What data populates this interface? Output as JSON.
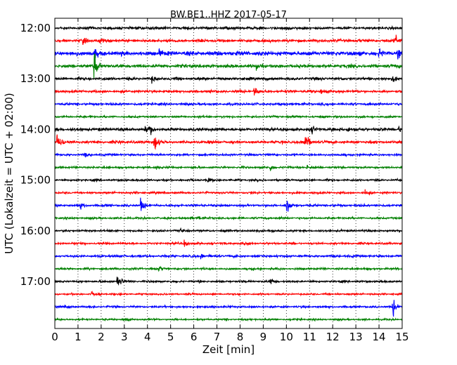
{
  "chart_data": {
    "type": "line",
    "title": "BW.BE1..HHZ 2017-05-17",
    "xlabel": "Zeit  [min]",
    "ylabel": "UTC (Lokalzeit = UTC + 02:00)",
    "xlim": [
      0,
      15
    ],
    "x_ticks": [
      "0",
      "1",
      "2",
      "3",
      "4",
      "5",
      "6",
      "7",
      "8",
      "9",
      "10",
      "11",
      "12",
      "13",
      "14",
      "15"
    ],
    "y_tick_labels": [
      "12:00",
      "13:00",
      "14:00",
      "15:00",
      "16:00",
      "17:00"
    ],
    "grid": "dotted vertical",
    "trace_interval_min": 15,
    "colors": [
      "#000000",
      "#ff0000",
      "#0000ff",
      "#008000"
    ],
    "traces": [
      {
        "start": "12:00",
        "amp": 1.0,
        "events": [
          [
            4.1,
            3
          ],
          [
            10.0,
            2
          ]
        ]
      },
      {
        "start": "12:15",
        "amp": 1.1,
        "events": [
          [
            1.2,
            3
          ],
          [
            1.9,
            3
          ],
          [
            14.7,
            6
          ]
        ]
      },
      {
        "start": "12:30",
        "amp": 1.7,
        "events": [
          [
            1.7,
            4
          ],
          [
            4.5,
            3
          ],
          [
            14.0,
            3
          ],
          [
            14.8,
            3
          ]
        ]
      },
      {
        "start": "12:45",
        "amp": 1.3,
        "events": [
          [
            1.7,
            14
          ],
          [
            8.7,
            3
          ]
        ]
      },
      {
        "start": "13:00",
        "amp": 1.1,
        "events": [
          [
            4.2,
            3
          ],
          [
            14.6,
            3
          ]
        ]
      },
      {
        "start": "13:15",
        "amp": 1.0,
        "events": [
          [
            8.6,
            5
          ],
          [
            11.5,
            3
          ]
        ]
      },
      {
        "start": "13:30",
        "amp": 0.9,
        "events": []
      },
      {
        "start": "13:45",
        "amp": 0.8,
        "events": []
      },
      {
        "start": "14:00",
        "amp": 1.2,
        "events": [
          [
            3.9,
            5
          ],
          [
            4.1,
            4
          ],
          [
            11.1,
            3
          ],
          [
            12.6,
            3
          ],
          [
            14.8,
            3
          ]
        ]
      },
      {
        "start": "14:15",
        "amp": 1.1,
        "events": [
          [
            0.1,
            10
          ],
          [
            4.3,
            9
          ],
          [
            10.8,
            12
          ]
        ]
      },
      {
        "start": "14:30",
        "amp": 0.8,
        "events": [
          [
            1.3,
            2
          ]
        ]
      },
      {
        "start": "14:45",
        "amp": 0.8,
        "events": [
          [
            4.4,
            2
          ],
          [
            9.3,
            3
          ],
          [
            10.9,
            2
          ]
        ]
      },
      {
        "start": "15:00",
        "amp": 0.8,
        "events": [
          [
            6.6,
            2
          ]
        ]
      },
      {
        "start": "15:15",
        "amp": 0.8,
        "events": [
          [
            13.4,
            2
          ]
        ]
      },
      {
        "start": "15:30",
        "amp": 0.9,
        "events": [
          [
            1.1,
            3
          ],
          [
            3.7,
            7
          ],
          [
            10.0,
            11
          ]
        ]
      },
      {
        "start": "15:45",
        "amp": 0.8,
        "events": [
          [
            6.2,
            2
          ]
        ]
      },
      {
        "start": "16:00",
        "amp": 0.8,
        "events": [
          [
            5.4,
            2
          ],
          [
            9.2,
            2
          ]
        ]
      },
      {
        "start": "16:15",
        "amp": 0.8,
        "events": [
          [
            5.6,
            4
          ],
          [
            8.2,
            3
          ]
        ]
      },
      {
        "start": "16:30",
        "amp": 0.9,
        "events": [
          [
            6.3,
            3
          ]
        ]
      },
      {
        "start": "16:45",
        "amp": 0.8,
        "events": [
          [
            4.5,
            2
          ]
        ]
      },
      {
        "start": "17:00",
        "amp": 0.8,
        "events": [
          [
            2.7,
            9
          ],
          [
            9.3,
            3
          ]
        ]
      },
      {
        "start": "17:15",
        "amp": 0.7,
        "events": [
          [
            1.6,
            2
          ]
        ]
      },
      {
        "start": "17:30",
        "amp": 0.8,
        "events": [
          [
            14.6,
            9
          ]
        ]
      },
      {
        "start": "17:45",
        "amp": 0.7,
        "events": [
          [
            3.0,
            2
          ]
        ]
      }
    ]
  }
}
